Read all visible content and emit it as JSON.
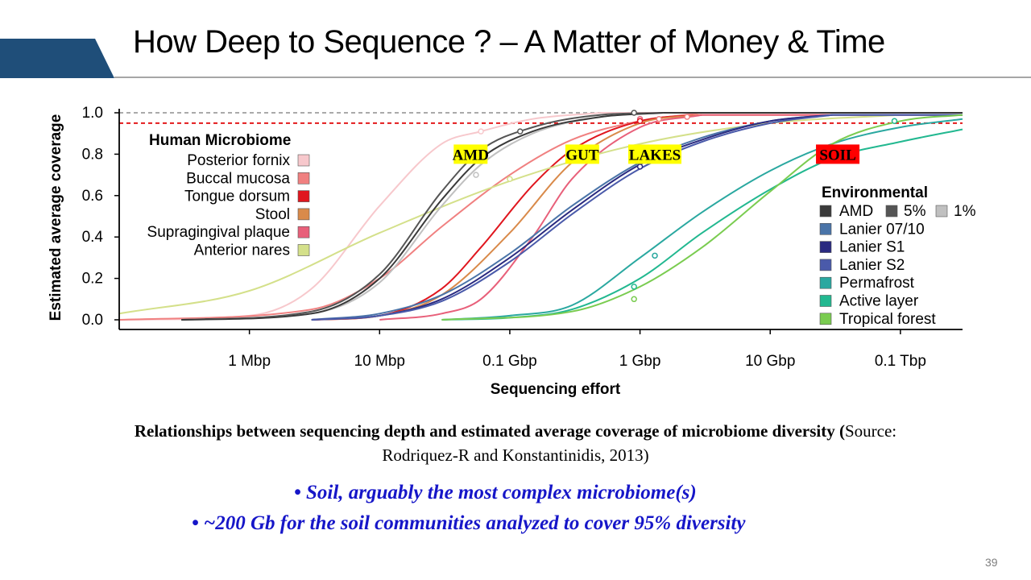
{
  "slide": {
    "title": "How Deep to Sequence ? – A Matter of Money & Time",
    "accent_color": "#1f4e79",
    "page_number": "39"
  },
  "caption": {
    "bold_text": "Relationships between sequencing depth and estimated average coverage of microbiome diversity (",
    "plain_text": "Source: Rodriquez-R and Konstantinidis, 2013)"
  },
  "bullets": [
    "• Soil, arguably the most complex microbiome(s)",
    "•  ~200 Gb for the soil communities analyzed to cover 95% diversity"
  ],
  "chart_data": {
    "type": "line",
    "xlabel": "Sequencing effort",
    "ylabel": "Estimated average coverage",
    "x_scale": "log",
    "x_unit": "bp",
    "xlim": [
      100000,
      300000000000
    ],
    "ylim": [
      0,
      1.0
    ],
    "x_ticks": [
      {
        "value": 1000000,
        "label": "1 Mbp"
      },
      {
        "value": 10000000,
        "label": "10 Mbp"
      },
      {
        "value": 100000000,
        "label": "0.1 Gbp"
      },
      {
        "value": 1000000000,
        "label": "1 Gbp"
      },
      {
        "value": 10000000000,
        "label": "10 Gbp"
      },
      {
        "value": 100000000000,
        "label": "0.1 Tbp"
      }
    ],
    "y_ticks": [
      {
        "value": 0.0,
        "label": "0.0"
      },
      {
        "value": 0.2,
        "label": "0.2"
      },
      {
        "value": 0.4,
        "label": "0.4"
      },
      {
        "value": 0.6,
        "label": "0.6"
      },
      {
        "value": 0.8,
        "label": "0.8"
      },
      {
        "value": 1.0,
        "label": "1.0"
      }
    ],
    "reference_lines": [
      {
        "y": 1.0,
        "color": "#aaaaaa",
        "style": "dashed"
      },
      {
        "y": 0.95,
        "color": "#e31a1c",
        "style": "dashed"
      }
    ],
    "legend_human": {
      "title": "Human Microbiome",
      "placement": "top-left",
      "items": [
        {
          "label": "Posterior fornix",
          "color": "#f7c8cc"
        },
        {
          "label": "Buccal mucosa",
          "color": "#f08080"
        },
        {
          "label": "Tongue dorsum",
          "color": "#e0161e"
        },
        {
          "label": "Stool",
          "color": "#d98a4a"
        },
        {
          "label": "Supragingival plaque",
          "color": "#e8607a"
        },
        {
          "label": "Anterior nares",
          "color": "#d4e08a"
        }
      ]
    },
    "legend_environmental": {
      "title": "Environmental",
      "placement": "right",
      "amd_percent_labels": [
        "5%",
        "1%"
      ],
      "amd_percent_colors": [
        "#555555",
        "#c0c0c0"
      ],
      "items": [
        {
          "label": "AMD",
          "color": "#3a3a3a"
        },
        {
          "label": "Lanier 07/10",
          "color": "#4a74a8"
        },
        {
          "label": "Lanier S1",
          "color": "#2a2a80"
        },
        {
          "label": "Lanier S2",
          "color": "#4a5aaa"
        },
        {
          "label": "Permafrost",
          "color": "#2aa8a0"
        },
        {
          "label": "Active layer",
          "color": "#22b890"
        },
        {
          "label": "Tropical forest",
          "color": "#7acc50"
        }
      ]
    },
    "annotations": [
      {
        "text": "AMD",
        "x_gbp": 0.05,
        "y": 0.8,
        "bg": "#ffff00"
      },
      {
        "text": "GUT",
        "x_gbp": 0.36,
        "y": 0.8,
        "bg": "#ffff00"
      },
      {
        "text": "LAKES",
        "x_gbp": 1.3,
        "y": 0.8,
        "bg": "#ffff00"
      },
      {
        "text": "SOIL",
        "x_gbp": 33,
        "y": 0.8,
        "bg": "#ff0000"
      }
    ],
    "series": [
      {
        "name": "Posterior fornix",
        "color": "#f7c8cc",
        "x": [
          100000,
          1000000,
          3000000,
          10000000,
          30000000,
          60000000,
          150000000,
          500000000
        ],
        "y": [
          0.0,
          0.02,
          0.15,
          0.55,
          0.85,
          0.91,
          0.97,
          1.0
        ]
      },
      {
        "name": "Buccal mucosa",
        "color": "#f08080",
        "x": [
          100000,
          3000000,
          10000000,
          30000000,
          100000000,
          300000000,
          1000000000,
          3000000000
        ],
        "y": [
          0.0,
          0.05,
          0.2,
          0.45,
          0.7,
          0.87,
          0.96,
          1.0
        ]
      },
      {
        "name": "Tongue dorsum",
        "color": "#e0161e",
        "x": [
          3000000,
          10000000,
          30000000,
          60000000,
          150000000,
          300000000,
          1000000000,
          3000000000
        ],
        "y": [
          0.0,
          0.02,
          0.15,
          0.35,
          0.65,
          0.82,
          0.96,
          0.99
        ]
      },
      {
        "name": "Stool",
        "color": "#d98a4a",
        "x": [
          3000000,
          10000000,
          30000000,
          100000000,
          300000000,
          1000000000,
          3000000000
        ],
        "y": [
          0.0,
          0.02,
          0.12,
          0.42,
          0.76,
          0.95,
          0.99
        ]
      },
      {
        "name": "Supragingival plaque",
        "color": "#e8607a",
        "x": [
          10000000,
          30000000,
          60000000,
          150000000,
          300000000,
          1000000000,
          3000000000
        ],
        "y": [
          0.0,
          0.03,
          0.1,
          0.4,
          0.68,
          0.93,
          0.99
        ]
      },
      {
        "name": "Anterior nares",
        "color": "#d4e08a",
        "x": [
          100000,
          1000000,
          10000000,
          100000000,
          1000000000,
          10000000000,
          100000000000
        ],
        "y": [
          0.03,
          0.14,
          0.42,
          0.67,
          0.85,
          0.95,
          0.99
        ]
      },
      {
        "name": "AMD 5%",
        "color": "#555555",
        "x": [
          300000,
          3000000,
          10000000,
          30000000,
          60000000,
          150000000,
          500000000,
          1500000000
        ],
        "y": [
          0.0,
          0.04,
          0.22,
          0.62,
          0.82,
          0.93,
          0.99,
          1.0
        ]
      },
      {
        "name": "AMD 1%",
        "color": "#c0c0c0",
        "x": [
          300000,
          3000000,
          10000000,
          30000000,
          60000000,
          150000000,
          500000000,
          1500000000
        ],
        "y": [
          0.0,
          0.03,
          0.18,
          0.55,
          0.75,
          0.9,
          0.98,
          1.0
        ]
      },
      {
        "name": "AMD",
        "color": "#3a3a3a",
        "x": [
          300000,
          3000000,
          10000000,
          30000000,
          60000000,
          150000000,
          500000000,
          1500000000
        ],
        "y": [
          0.0,
          0.03,
          0.2,
          0.58,
          0.78,
          0.91,
          0.98,
          1.0
        ]
      },
      {
        "name": "Lanier 07/10",
        "color": "#4a74a8",
        "x": [
          3000000,
          10000000,
          30000000,
          100000000,
          300000000,
          1000000000,
          3000000000,
          10000000000,
          30000000000
        ],
        "y": [
          0.0,
          0.03,
          0.12,
          0.32,
          0.55,
          0.76,
          0.88,
          0.96,
          0.99
        ]
      },
      {
        "name": "Lanier S1",
        "color": "#2a2a80",
        "x": [
          3000000,
          10000000,
          30000000,
          100000000,
          300000000,
          1000000000,
          3000000000,
          10000000000,
          30000000000
        ],
        "y": [
          0.0,
          0.02,
          0.1,
          0.3,
          0.53,
          0.75,
          0.87,
          0.96,
          0.99
        ]
      },
      {
        "name": "Lanier S2",
        "color": "#4a5aaa",
        "x": [
          3000000,
          10000000,
          30000000,
          100000000,
          300000000,
          1000000000,
          3000000000,
          10000000000,
          30000000000
        ],
        "y": [
          0.0,
          0.02,
          0.09,
          0.28,
          0.51,
          0.73,
          0.86,
          0.95,
          0.99
        ]
      },
      {
        "name": "Permafrost",
        "color": "#2aa8a0",
        "x": [
          30000000,
          100000000,
          300000000,
          1000000000,
          3000000000,
          10000000000,
          30000000000,
          100000000000,
          300000000000
        ],
        "y": [
          0.0,
          0.02,
          0.07,
          0.3,
          0.52,
          0.72,
          0.85,
          0.93,
          0.97
        ]
      },
      {
        "name": "Active layer",
        "color": "#22b890",
        "x": [
          30000000,
          100000000,
          300000000,
          1000000000,
          3000000000,
          10000000000,
          30000000000,
          100000000000,
          300000000000
        ],
        "y": [
          0.0,
          0.01,
          0.05,
          0.2,
          0.42,
          0.63,
          0.78,
          0.86,
          0.92
        ]
      },
      {
        "name": "Tropical forest",
        "color": "#7acc50",
        "x": [
          30000000,
          300000000,
          1000000000,
          3000000000,
          10000000000,
          30000000000,
          100000000000,
          300000000000
        ],
        "y": [
          0.0,
          0.04,
          0.16,
          0.35,
          0.62,
          0.85,
          0.96,
          0.99
        ]
      }
    ],
    "markers": [
      {
        "x": 60000000,
        "y": 0.91,
        "color": "#f7c8cc"
      },
      {
        "x": 120000000,
        "y": 0.91,
        "color": "#555555"
      },
      {
        "x": 55000000,
        "y": 0.7,
        "color": "#c0c0c0"
      },
      {
        "x": 100000000,
        "y": 0.68,
        "color": "#d4e08a"
      },
      {
        "x": 900000000,
        "y": 1.0,
        "color": "#555555"
      },
      {
        "x": 1000000000,
        "y": 0.97,
        "color": "#e8607a"
      },
      {
        "x": 1000000000,
        "y": 0.96,
        "color": "#e0161e"
      },
      {
        "x": 1400000000,
        "y": 0.97,
        "color": "#f08080"
      },
      {
        "x": 2300000000,
        "y": 0.98,
        "color": "#f08080"
      },
      {
        "x": 1000000000,
        "y": 0.74,
        "color": "#2a2a80"
      },
      {
        "x": 1300000000,
        "y": 0.31,
        "color": "#2aa8a0"
      },
      {
        "x": 900000000,
        "y": 0.16,
        "color": "#22b890"
      },
      {
        "x": 900000000,
        "y": 0.1,
        "color": "#7acc50"
      },
      {
        "x": 90000000000,
        "y": 0.96,
        "color": "#22b890"
      }
    ]
  }
}
